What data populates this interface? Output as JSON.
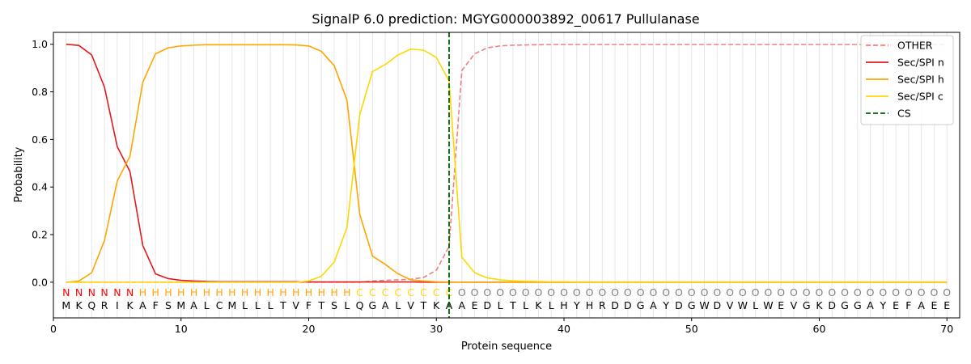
{
  "chart_data": {
    "type": "line",
    "title": "SignalP 6.0 prediction: MGYG000003892_00617 Pullulanase",
    "xlabel": "Protein sequence",
    "ylabel": "Probability",
    "xlim": [
      0,
      71
    ],
    "ylim": [
      -0.15,
      1.05
    ],
    "xticks": [
      0,
      10,
      20,
      30,
      40,
      50,
      60,
      70
    ],
    "yticks": [
      0.0,
      0.2,
      0.4,
      0.6,
      0.8,
      1.0
    ],
    "xtick_labels": [
      "0",
      "10",
      "20",
      "30",
      "40",
      "50",
      "60",
      "70"
    ],
    "ytick_labels": [
      "0.0",
      "0.2",
      "0.4",
      "0.6",
      "0.8",
      "1.0"
    ],
    "grid": "vertical lines at every residue",
    "legend_position": "top-right",
    "sequence": [
      "M",
      "K",
      "Q",
      "R",
      "I",
      "K",
      "A",
      "F",
      "S",
      "M",
      "A",
      "L",
      "C",
      "M",
      "L",
      "L",
      "L",
      "T",
      "V",
      "F",
      "T",
      "S",
      "L",
      "Q",
      "G",
      "A",
      "L",
      "V",
      "T",
      "K",
      "A",
      "A",
      "E",
      "D",
      "L",
      "T",
      "L",
      "K",
      "L",
      "H",
      "Y",
      "H",
      "R",
      "D",
      "D",
      "G",
      "A",
      "Y",
      "D",
      "G",
      "W",
      "D",
      "V",
      "W",
      "L",
      "W",
      "E",
      "V",
      "G",
      "K",
      "D",
      "G",
      "G",
      "A",
      "Y",
      "E",
      "F",
      "A",
      "E",
      "E"
    ],
    "labels": [
      "N",
      "N",
      "N",
      "N",
      "N",
      "N",
      "H",
      "H",
      "H",
      "H",
      "H",
      "H",
      "H",
      "H",
      "H",
      "H",
      "H",
      "H",
      "H",
      "H",
      "H",
      "H",
      "H",
      "C",
      "C",
      "C",
      "C",
      "C",
      "C",
      "C",
      "C",
      "O",
      "O",
      "O",
      "O",
      "O",
      "O",
      "O",
      "O",
      "O",
      "O",
      "O",
      "O",
      "O",
      "O",
      "O",
      "O",
      "O",
      "O",
      "O",
      "O",
      "O",
      "O",
      "O",
      "O",
      "O",
      "O",
      "O",
      "O",
      "O",
      "O",
      "O",
      "O",
      "O",
      "O",
      "O",
      "O",
      "O",
      "O",
      "O"
    ],
    "label_colors": {
      "N": "#ff0000",
      "H": "#ffa500",
      "C": "#ffd700",
      "O": "#808080"
    },
    "x": [
      1,
      2,
      3,
      4,
      5,
      6,
      7,
      8,
      9,
      10,
      11,
      12,
      13,
      14,
      15,
      16,
      17,
      18,
      19,
      20,
      21,
      22,
      23,
      24,
      25,
      26,
      27,
      28,
      29,
      30,
      31,
      32,
      33,
      34,
      35,
      36,
      37,
      38,
      39,
      40,
      41,
      42,
      43,
      44,
      45,
      46,
      47,
      48,
      49,
      50,
      51,
      52,
      53,
      54,
      55,
      56,
      57,
      58,
      59,
      60,
      61,
      62,
      63,
      64,
      65,
      66,
      67,
      68,
      69,
      70
    ],
    "series": [
      {
        "name": "OTHER",
        "color": "#f08080",
        "dash": true,
        "values": [
          0.0,
          0.0,
          0.0,
          0.0,
          0.0,
          0.0,
          0.0,
          0.0,
          0.0,
          0.0,
          0.0,
          0.0,
          0.0,
          0.0,
          0.0,
          0.0,
          0.0,
          0.0,
          0.0,
          0.0,
          0.0,
          0.0,
          0.0,
          0.0,
          0.005,
          0.008,
          0.01,
          0.012,
          0.02,
          0.05,
          0.15,
          0.89,
          0.96,
          0.985,
          0.993,
          0.996,
          0.997,
          0.998,
          0.999,
          0.999,
          0.999,
          0.999,
          0.999,
          0.999,
          0.999,
          0.999,
          0.999,
          0.999,
          0.999,
          0.999,
          0.999,
          0.999,
          0.999,
          0.999,
          0.999,
          0.999,
          0.999,
          0.999,
          0.999,
          0.999,
          0.999,
          0.999,
          0.999,
          0.999,
          0.999,
          0.999,
          0.999,
          0.999,
          0.999,
          0.999
        ]
      },
      {
        "name": "Sec/SPI n",
        "color": "#e31a1c",
        "dash": false,
        "values": [
          1.0,
          0.995,
          0.955,
          0.82,
          0.57,
          0.465,
          0.155,
          0.035,
          0.015,
          0.008,
          0.005,
          0.003,
          0.002,
          0.002,
          0.002,
          0.002,
          0.002,
          0.002,
          0.002,
          0.001,
          0.001,
          0.001,
          0.001,
          0.001,
          0.001,
          0.001,
          0.001,
          0.001,
          0.0,
          0.0,
          0.0,
          0.0,
          0.0,
          0.0,
          0.0,
          0.0,
          0.0,
          0.0,
          0.0,
          0.0,
          0.0,
          0.0,
          0.0,
          0.0,
          0.0,
          0.0,
          0.0,
          0.0,
          0.0,
          0.0,
          0.0,
          0.0,
          0.0,
          0.0,
          0.0,
          0.0,
          0.0,
          0.0,
          0.0,
          0.0,
          0.0,
          0.0,
          0.0,
          0.0,
          0.0,
          0.0,
          0.0,
          0.0,
          0.0,
          0.0
        ]
      },
      {
        "name": "Sec/SPI h",
        "color": "#ffa500",
        "dash": false,
        "values": [
          0.0,
          0.005,
          0.04,
          0.175,
          0.425,
          0.53,
          0.84,
          0.96,
          0.985,
          0.993,
          0.996,
          0.998,
          0.998,
          0.998,
          0.998,
          0.998,
          0.998,
          0.998,
          0.997,
          0.993,
          0.97,
          0.91,
          0.765,
          0.285,
          0.11,
          0.075,
          0.035,
          0.01,
          0.005,
          0.002,
          0.001,
          0.0,
          0.0,
          0.0,
          0.0,
          0.0,
          0.0,
          0.0,
          0.0,
          0.0,
          0.0,
          0.0,
          0.0,
          0.0,
          0.0,
          0.0,
          0.0,
          0.0,
          0.0,
          0.0,
          0.0,
          0.0,
          0.0,
          0.0,
          0.0,
          0.0,
          0.0,
          0.0,
          0.0,
          0.0,
          0.0,
          0.0,
          0.0,
          0.0,
          0.0,
          0.0,
          0.0,
          0.0,
          0.0,
          0.0
        ]
      },
      {
        "name": "Sec/SPI c",
        "color": "#ffd700",
        "dash": false,
        "values": [
          0.0,
          0.0,
          0.0,
          0.0,
          0.0,
          0.0,
          0.0,
          0.0,
          0.0,
          0.0,
          0.0,
          0.0,
          0.0,
          0.0,
          0.0,
          0.0,
          0.0,
          0.0,
          0.0,
          0.005,
          0.025,
          0.085,
          0.23,
          0.705,
          0.885,
          0.915,
          0.955,
          0.98,
          0.975,
          0.945,
          0.845,
          0.105,
          0.04,
          0.018,
          0.01,
          0.006,
          0.004,
          0.003,
          0.002,
          0.002,
          0.001,
          0.001,
          0.001,
          0.001,
          0.001,
          0.001,
          0.001,
          0.001,
          0.001,
          0.001,
          0.001,
          0.001,
          0.001,
          0.001,
          0.001,
          0.001,
          0.001,
          0.001,
          0.001,
          0.001,
          0.001,
          0.001,
          0.001,
          0.001,
          0.001,
          0.001,
          0.001,
          0.001,
          0.001,
          0.001
        ]
      }
    ],
    "cs": {
      "name": "CS",
      "x": 31,
      "color": "#006400"
    }
  }
}
